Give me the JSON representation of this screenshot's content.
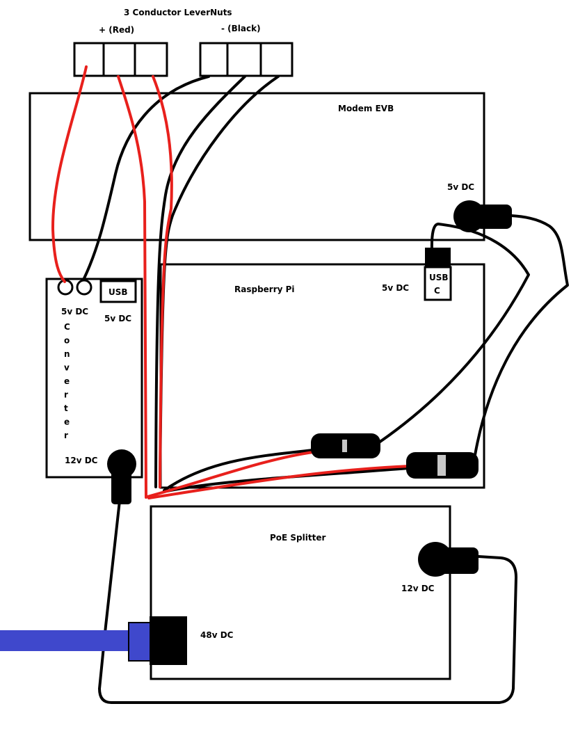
{
  "colors": {
    "red_wire": "#e8201c",
    "black_wire": "#000000",
    "ethernet_cable": "#3f48cc",
    "outline": "#000000"
  },
  "levernuts": {
    "title": "3 Conductor LeverNuts",
    "positive_label": "+ (Red)",
    "negative_label": "- (Black)"
  },
  "modem": {
    "name": "Modem EVB",
    "power_label": "5v DC"
  },
  "pi": {
    "name": "Raspberry Pi",
    "power_label": "5v DC",
    "usb_c_line1": "USB",
    "usb_c_line2": "C"
  },
  "converter": {
    "out_label": "5v DC",
    "usb_label": "USB",
    "usb_power_label": "5v DC",
    "vertical_text": [
      "C",
      "o",
      "n",
      "v",
      "e",
      "r",
      "t",
      "e",
      "r"
    ],
    "in_label": "12v DC"
  },
  "poe": {
    "name": "PoE Splitter",
    "out_label": "12v DC",
    "in_label": "48v DC"
  }
}
